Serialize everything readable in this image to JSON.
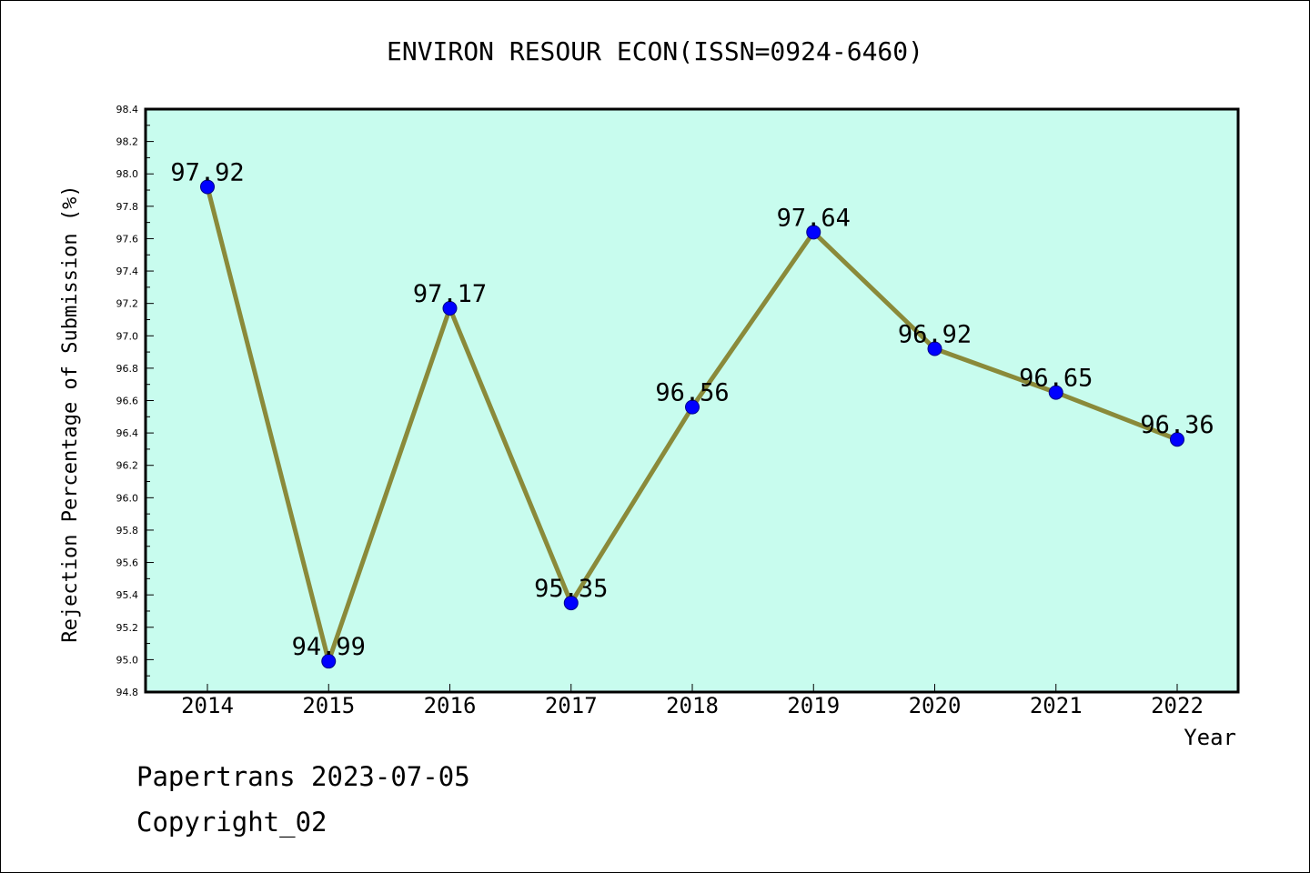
{
  "chart_data": {
    "type": "line",
    "title": "ENVIRON RESOUR ECON(ISSN=0924-6460)",
    "xlabel": "Year",
    "ylabel": "Rejection Percentage of Submission (%)",
    "x": [
      "2014",
      "2015",
      "2016",
      "2017",
      "2018",
      "2019",
      "2020",
      "2021",
      "2022"
    ],
    "series": [
      {
        "values": [
          97.92,
          94.99,
          97.17,
          95.35,
          96.56,
          97.64,
          96.92,
          96.65,
          96.36
        ],
        "labels": [
          "97.92",
          "94.99",
          "97.17",
          "95.35",
          "96.56",
          "97.64",
          "96.92",
          "96.65",
          "96.36"
        ]
      }
    ],
    "ylim": [
      94.8,
      98.4
    ],
    "yticks": [
      "94.8",
      "95.0",
      "95.2",
      "95.4",
      "95.6",
      "95.8",
      "96.0",
      "96.2",
      "96.4",
      "96.6",
      "96.8",
      "97.0",
      "97.2",
      "97.4",
      "97.6",
      "97.8",
      "98.0",
      "98.2",
      "98.4"
    ],
    "grid": false,
    "colors": {
      "plot_background": "#c8fcee",
      "line": "#8a8a3a",
      "marker": "#0000ff"
    }
  },
  "footer": {
    "line1": "Papertrans 2023-07-05",
    "line2": "Copyright_02"
  }
}
